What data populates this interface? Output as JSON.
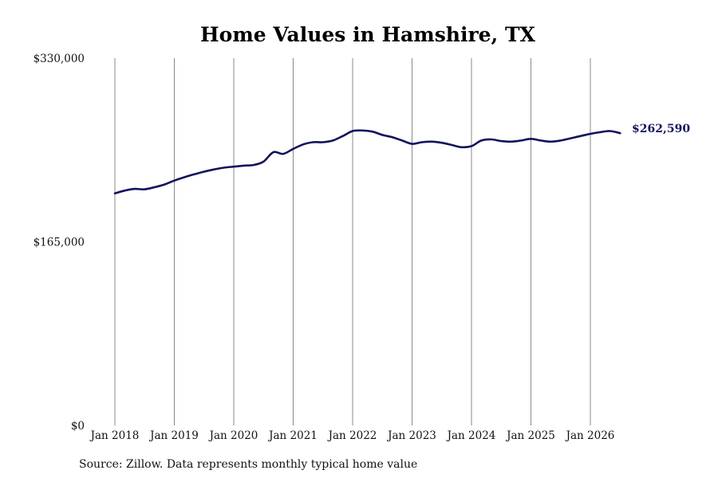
{
  "chart_data": {
    "type": "line",
    "title": "Home Values in Hamshire, TX",
    "xlabel": "",
    "ylabel": "",
    "ylim": [
      0,
      330000
    ],
    "y_ticks": [
      {
        "value": 0,
        "label": "$0"
      },
      {
        "value": 165000,
        "label": "$165,000"
      },
      {
        "value": 330000,
        "label": "$330,000"
      }
    ],
    "x_ticks": [
      "Jan 2018",
      "Jan 2019",
      "Jan 2020",
      "Jan 2021",
      "Jan 2022",
      "Jan 2023",
      "Jan 2024",
      "Jan 2025",
      "Jan 2026"
    ],
    "grid": "vertical",
    "series": [
      {
        "color": "#13115e",
        "x": [
          "2018-01",
          "2018-03",
          "2018-05",
          "2018-07",
          "2018-09",
          "2018-11",
          "2019-01",
          "2019-03",
          "2019-05",
          "2019-07",
          "2019-09",
          "2019-11",
          "2020-01",
          "2020-03",
          "2020-05",
          "2020-07",
          "2020-09",
          "2020-11",
          "2021-01",
          "2021-03",
          "2021-05",
          "2021-07",
          "2021-09",
          "2021-11",
          "2022-01",
          "2022-03",
          "2022-05",
          "2022-07",
          "2022-09",
          "2022-11",
          "2023-01",
          "2023-03",
          "2023-05",
          "2023-07",
          "2023-09",
          "2023-11",
          "2024-01",
          "2024-03",
          "2024-05",
          "2024-07",
          "2024-09",
          "2024-11",
          "2025-01",
          "2025-03",
          "2025-05",
          "2025-07",
          "2025-09",
          "2025-11",
          "2026-01",
          "2026-03",
          "2026-05",
          "2026-07"
        ],
        "values": [
          208500,
          211000,
          212500,
          212200,
          214000,
          216500,
          220000,
          223000,
          225600,
          228000,
          230000,
          231600,
          232500,
          233400,
          234000,
          237000,
          245500,
          244000,
          248500,
          252500,
          254500,
          254500,
          256000,
          260000,
          264500,
          265000,
          264000,
          261000,
          259000,
          256000,
          253000,
          254500,
          255000,
          254000,
          252000,
          250000,
          251000,
          256000,
          257000,
          255500,
          255000,
          256000,
          257500,
          256000,
          255000,
          256000,
          258000,
          260000,
          262000,
          263500,
          264500,
          262590
        ]
      }
    ],
    "end_label": "$262,590"
  },
  "footer": {
    "source": "Source: Zillow. Data represents monthly typical home value"
  }
}
